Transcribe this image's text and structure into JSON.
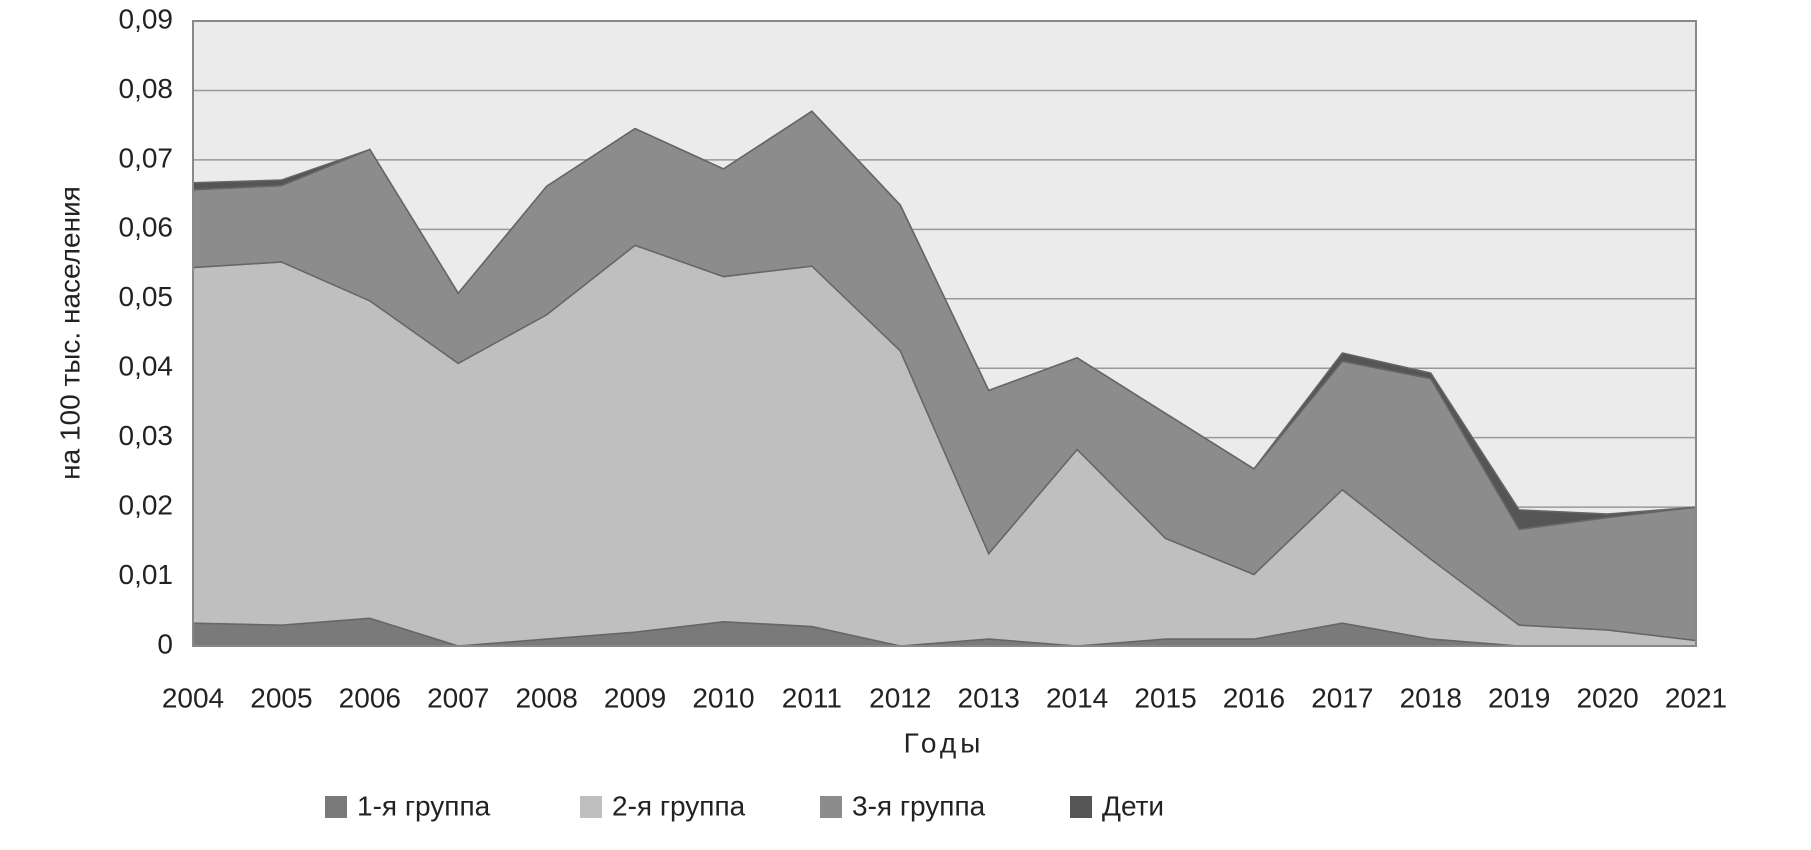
{
  "chart_data": {
    "type": "stacked-area",
    "y_label": "на 100 тыс. населения",
    "x_label": "Годы",
    "categories": [
      "2004",
      "2005",
      "2006",
      "2007",
      "2008",
      "2009",
      "2010",
      "2011",
      "2012",
      "2013",
      "2014",
      "2015",
      "2016",
      "2017",
      "2018",
      "2019",
      "2020",
      "2021"
    ],
    "series": [
      {
        "name": "1-я группа",
        "color": "#7a7a7a",
        "values": [
          0.0033,
          0.003,
          0.004,
          0,
          0.001,
          0.002,
          0.0035,
          0.0028,
          0,
          0.001,
          0,
          0.001,
          0.001,
          0.0033,
          0.001,
          0,
          0,
          0
        ]
      },
      {
        "name": "2-я группа",
        "color": "#bfbfbf",
        "values": [
          0.0512,
          0.0523,
          0.0457,
          0.0407,
          0.0467,
          0.0557,
          0.0497,
          0.0519,
          0.0425,
          0.0123,
          0.0283,
          0.0145,
          0.0093,
          0.0192,
          0.0115,
          0.003,
          0.0023,
          0.0008
        ]
      },
      {
        "name": "3-я группа",
        "color": "#8c8c8c",
        "values": [
          0.0112,
          0.011,
          0.0218,
          0.0101,
          0.0185,
          0.0168,
          0.0155,
          0.0223,
          0.021,
          0.0235,
          0.0132,
          0.018,
          0.0152,
          0.0185,
          0.026,
          0.0138,
          0.0162,
          0.0192
        ]
      },
      {
        "name": "Дети",
        "color": "#555555",
        "values": [
          0.001,
          0.0008,
          0,
          0,
          0,
          0,
          0,
          0,
          0,
          0,
          0,
          0,
          0,
          0.0012,
          0.0008,
          0.0028,
          0.0005,
          0
        ]
      }
    ],
    "ylim": [
      0,
      0.09
    ],
    "yticks": [
      0,
      {
        "value": 0.01,
        "label": "0,01"
      },
      {
        "value": 0.02,
        "label": "0,02"
      },
      {
        "value": 0.03,
        "label": "0,03"
      },
      {
        "value": 0.04,
        "label": "0,04"
      },
      {
        "value": 0.05,
        "label": "0,05"
      },
      {
        "value": 0.06,
        "label": "0,06"
      },
      {
        "value": 0.07,
        "label": "0,07"
      },
      {
        "value": 0.08,
        "label": "0,08"
      },
      {
        "value": 0.09,
        "label": "0,09"
      }
    ],
    "grid": true
  }
}
